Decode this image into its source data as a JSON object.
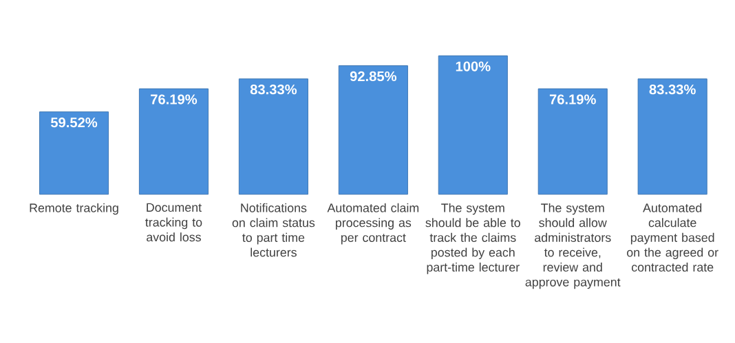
{
  "chart_data": {
    "type": "bar",
    "categories": [
      "Remote tracking",
      "Document tracking to avoid loss",
      "Notifications on claim status to part time lecturers",
      "Automated claim processing as per contract",
      "The system should be able to track the claims posted by each part-time lecturer",
      "The system should allow administrators to receive, review and approve payment",
      "Automated calculate payment based on the agreed or contracted rate"
    ],
    "values": [
      59.52,
      76.19,
      83.33,
      92.85,
      100,
      76.19,
      83.33
    ],
    "value_labels": [
      "59.52%",
      "76.19%",
      "83.33%",
      "92.85%",
      "100%",
      "76.19%",
      "83.33%"
    ],
    "color": "#4a90dc"
  }
}
